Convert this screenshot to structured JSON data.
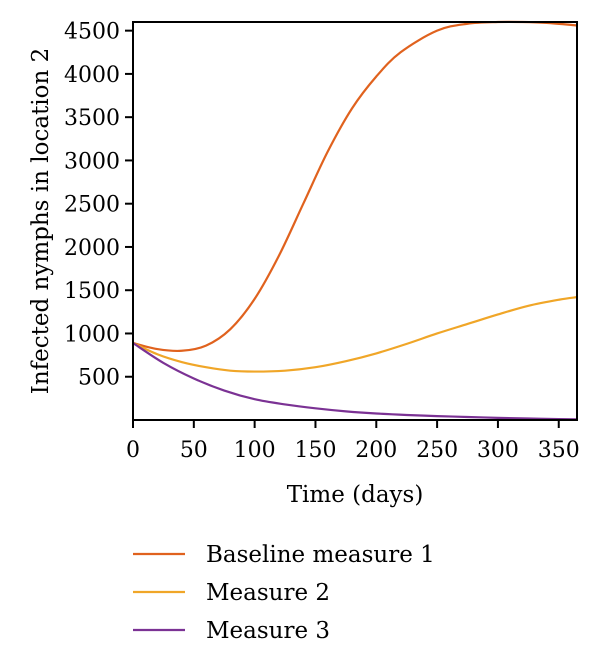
{
  "chart_data": {
    "type": "line",
    "title": "",
    "xlabel": "Time (days)",
    "ylabel": "Infected nymphs in location 2",
    "xlim": [
      0,
      365
    ],
    "ylim": [
      0,
      4600
    ],
    "xticks": [
      0,
      50,
      100,
      150,
      200,
      250,
      300,
      350
    ],
    "yticks": [
      500,
      1000,
      1500,
      2000,
      2500,
      3000,
      3500,
      4000,
      4500
    ],
    "grid": false,
    "legend_position": "bottom",
    "series": [
      {
        "name": "Baseline measure 1",
        "color": "#e0621e",
        "x": [
          0,
          20,
          40,
          60,
          80,
          100,
          120,
          140,
          160,
          180,
          200,
          220,
          250,
          275,
          300,
          320,
          340,
          365
        ],
        "y": [
          890,
          820,
          800,
          860,
          1050,
          1400,
          1900,
          2500,
          3100,
          3600,
          3970,
          4250,
          4500,
          4580,
          4600,
          4600,
          4590,
          4560
        ]
      },
      {
        "name": "Measure 2",
        "color": "#f0a628",
        "x": [
          0,
          20,
          40,
          60,
          80,
          100,
          125,
          150,
          175,
          200,
          225,
          250,
          275,
          300,
          325,
          350,
          365
        ],
        "y": [
          890,
          760,
          670,
          610,
          570,
          560,
          570,
          610,
          680,
          770,
          880,
          1000,
          1110,
          1220,
          1320,
          1390,
          1420
        ]
      },
      {
        "name": "Measure 3",
        "color": "#7b3294",
        "x": [
          0,
          25,
          50,
          75,
          100,
          125,
          150,
          175,
          200,
          225,
          250,
          275,
          300,
          325,
          350,
          365
        ],
        "y": [
          890,
          660,
          480,
          340,
          240,
          180,
          135,
          100,
          75,
          58,
          45,
          35,
          25,
          17,
          10,
          8
        ]
      }
    ]
  }
}
